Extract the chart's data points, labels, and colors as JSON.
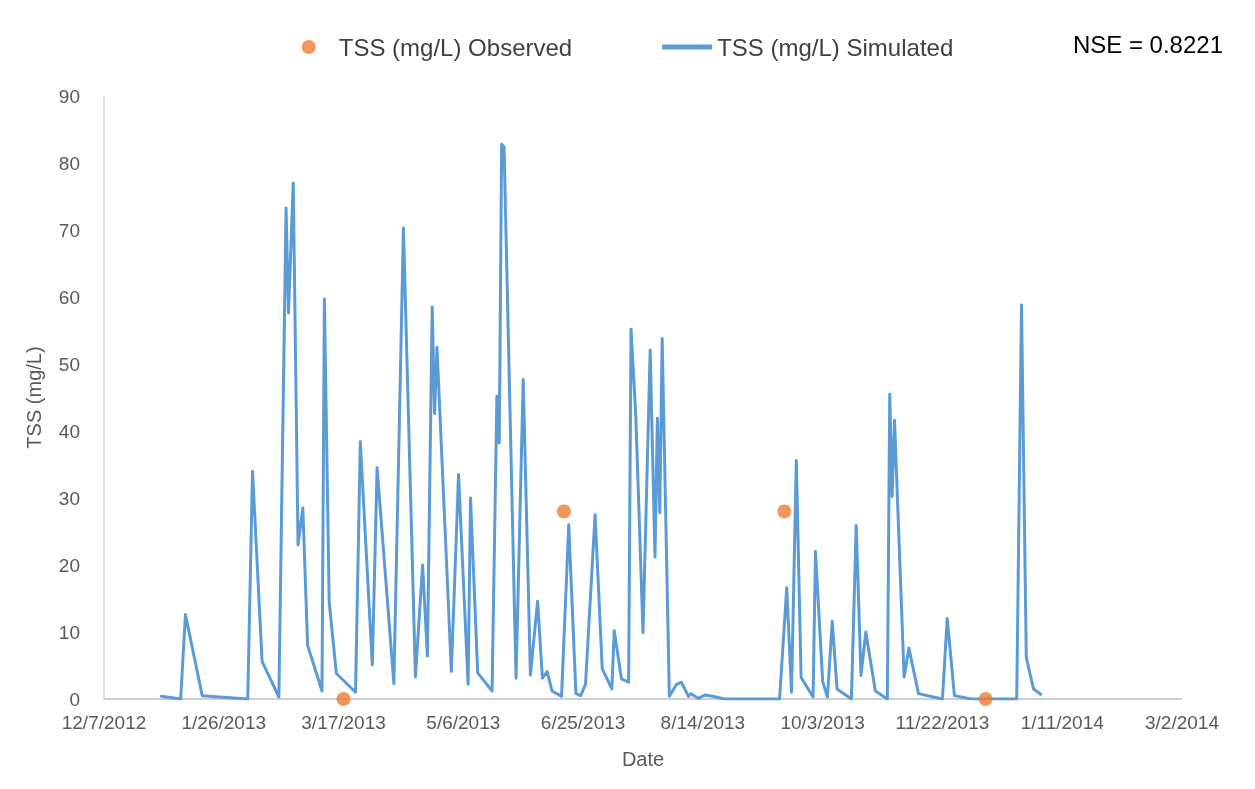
{
  "chart_data": {
    "type": "line",
    "xlabel": "Date",
    "ylabel": "TSS (mg/L)",
    "annotations": [
      "NSE = 0.8221"
    ],
    "xlim": [
      "2012-12-07",
      "2014-03-02"
    ],
    "xticks": [
      {
        "value": "2012-12-07",
        "label": "12/7/2012"
      },
      {
        "value": "2013-01-26",
        "label": "1/26/2013"
      },
      {
        "value": "2013-03-17",
        "label": "3/17/2013"
      },
      {
        "value": "2013-05-06",
        "label": "5/6/2013"
      },
      {
        "value": "2013-06-25",
        "label": "6/25/2013"
      },
      {
        "value": "2013-08-14",
        "label": "8/14/2013"
      },
      {
        "value": "2013-10-03",
        "label": "10/3/2013"
      },
      {
        "value": "2013-11-22",
        "label": "11/22/2013"
      },
      {
        "value": "2014-01-11",
        "label": "1/11/2014"
      },
      {
        "value": "2014-03-02",
        "label": "3/2/2014"
      }
    ],
    "ylim": [
      0,
      90
    ],
    "yticks": [
      0,
      10,
      20,
      30,
      40,
      50,
      60,
      70,
      80,
      90
    ],
    "grid": false,
    "legend": "top",
    "series": [
      {
        "name": "TSS (mg/L) Observed",
        "type": "scatter",
        "marker": "circle",
        "color": "#ed7d31",
        "x": [
          "2013-03-17",
          "2013-06-17",
          "2013-09-17",
          "2013-12-10"
        ],
        "values": [
          0,
          28,
          28,
          0
        ]
      },
      {
        "name": "TSS (mg/L) Simulated",
        "marker": "none",
        "color": "#5b9bd5",
        "x": [
          "2012-12-31",
          "2013-01-08",
          "2013-01-10",
          "2013-01-17",
          "2013-02-05",
          "2013-02-07",
          "2013-02-11",
          "2013-02-18",
          "2013-02-21",
          "2013-02-22",
          "2013-02-24",
          "2013-02-26",
          "2013-02-28",
          "2013-03-02",
          "2013-03-08",
          "2013-03-09",
          "2013-03-11",
          "2013-03-14",
          "2013-03-22",
          "2013-03-24",
          "2013-03-29",
          "2013-03-31",
          "2013-04-07",
          "2013-04-11",
          "2013-04-16",
          "2013-04-19",
          "2013-04-21",
          "2013-04-23",
          "2013-04-24",
          "2013-04-25",
          "2013-05-01",
          "2013-05-04",
          "2013-05-08",
          "2013-05-09",
          "2013-05-12",
          "2013-05-18",
          "2013-05-20",
          "2013-05-21",
          "2013-05-22",
          "2013-05-23",
          "2013-05-28",
          "2013-05-31",
          "2013-06-03",
          "2013-06-06",
          "2013-06-08",
          "2013-06-10",
          "2013-06-12",
          "2013-06-16",
          "2013-06-19",
          "2013-06-22",
          "2013-06-24",
          "2013-06-26",
          "2013-06-30",
          "2013-07-03",
          "2013-07-07",
          "2013-07-08",
          "2013-07-11",
          "2013-07-14",
          "2013-07-15",
          "2013-07-17",
          "2013-07-20",
          "2013-07-23",
          "2013-07-25",
          "2013-07-26",
          "2013-07-27",
          "2013-07-28",
          "2013-07-31",
          "2013-08-03",
          "2013-08-05",
          "2013-08-08",
          "2013-08-09",
          "2013-08-12",
          "2013-08-15",
          "2013-08-18",
          "2013-08-23",
          "2013-09-15",
          "2013-09-18",
          "2013-09-20",
          "2013-09-22",
          "2013-09-24",
          "2013-09-29",
          "2013-09-30",
          "2013-10-03",
          "2013-10-05",
          "2013-10-07",
          "2013-10-09",
          "2013-10-15",
          "2013-10-17",
          "2013-10-19",
          "2013-10-21",
          "2013-10-25",
          "2013-10-30",
          "2013-10-31",
          "2013-11-01",
          "2013-11-02",
          "2013-11-06",
          "2013-11-08",
          "2013-11-12",
          "2013-11-22",
          "2013-11-24",
          "2013-11-27",
          "2013-12-04",
          "2013-12-23",
          "2013-12-25",
          "2013-12-27",
          "2013-12-30",
          "2014-01-02"
        ],
        "values": [
          0.4,
          0,
          12.6,
          0.5,
          0,
          34,
          5.6,
          0.3,
          73.3,
          57.6,
          77,
          23,
          28.5,
          8,
          1.2,
          59.7,
          14.5,
          3.8,
          1,
          38.4,
          5.1,
          34.5,
          2.3,
          70.3,
          3.3,
          20,
          6.4,
          58.5,
          42.6,
          52.5,
          4.1,
          33.5,
          2.2,
          30,
          3.9,
          1.2,
          45.2,
          38.2,
          82.8,
          82.4,
          3.1,
          47.7,
          3.6,
          14.6,
          3.1,
          4.1,
          1.2,
          0.4,
          26,
          0.8,
          0.5,
          2.2,
          27.5,
          4.5,
          1.5,
          10.2,
          3,
          2.5,
          55.2,
          42.2,
          9.9,
          52.1,
          21.2,
          41.9,
          27.8,
          53.8,
          0.4,
          2.2,
          2.5,
          0.4,
          0.8,
          0.1,
          0.6,
          0.4,
          0,
          0,
          16.6,
          1,
          35.6,
          3.2,
          0.3,
          22,
          2.6,
          0.3,
          11.6,
          1.5,
          0,
          25.9,
          3.5,
          10,
          1.2,
          0,
          45.5,
          30.2,
          41.6,
          3.3,
          7.6,
          0.8,
          0,
          12,
          0.5,
          0,
          0,
          58.8,
          6.2,
          1.5,
          0.7
        ]
      }
    ]
  }
}
